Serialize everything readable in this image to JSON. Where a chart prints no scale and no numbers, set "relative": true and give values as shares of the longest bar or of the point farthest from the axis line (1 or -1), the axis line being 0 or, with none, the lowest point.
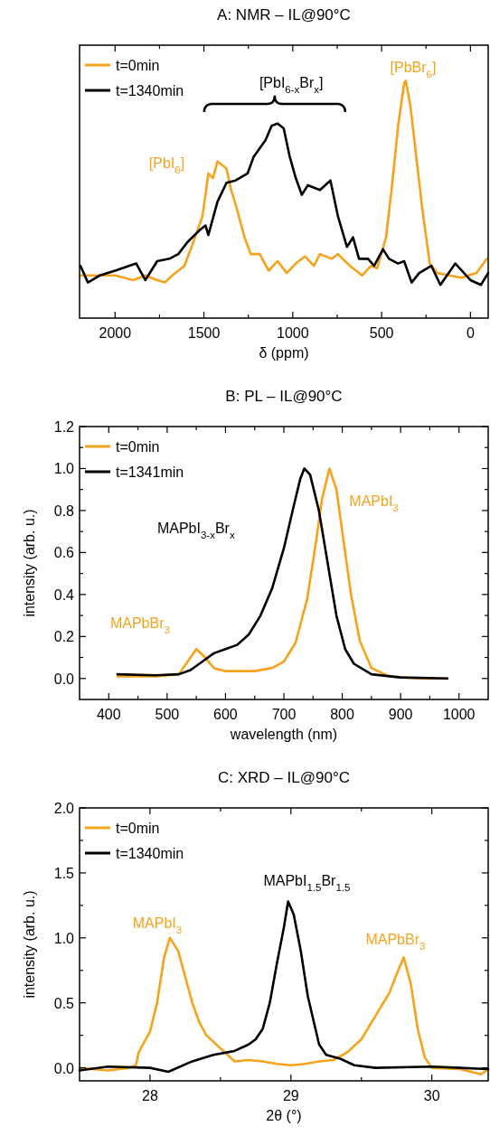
{
  "chart_data": [
    {
      "type": "line",
      "title": "A: NMR – IL@90°C",
      "xlabel": "δ (ppm)",
      "relative": true,
      "legend": "top left",
      "xlim": [
        2200,
        -100
      ],
      "xticks": [
        2000,
        {
          "value": 1750,
          "label": null
        },
        1500,
        {
          "value": 1250,
          "label": null
        },
        1000,
        {
          "value": 750,
          "label": null
        },
        500,
        {
          "value": 250,
          "label": null
        },
        0
      ],
      "series": [
        {
          "name": "t=0min",
          "color": "#f7a21b",
          "x": [
            2195,
            2085,
            2000,
            1898,
            1830,
            1763,
            1720,
            1678,
            1610,
            1560,
            1508,
            1475,
            1449,
            1424,
            1373,
            1347,
            1322,
            1271,
            1237,
            1186,
            1136,
            1085,
            1034,
            983,
            932,
            881,
            847,
            780,
            746,
            678,
            610,
            559,
            525,
            475,
            441,
            407,
            373,
            364,
            339,
            305,
            271,
            229,
            186,
            119,
            51,
            -34,
            -93
          ],
          "values": [
            0.18,
            0.18,
            0.18,
            0.16,
            0.18,
            0.16,
            0.15,
            0.18,
            0.22,
            0.32,
            0.43,
            0.61,
            0.59,
            0.66,
            0.63,
            0.54,
            0.48,
            0.34,
            0.27,
            0.27,
            0.2,
            0.24,
            0.19,
            0.23,
            0.26,
            0.22,
            0.27,
            0.25,
            0.27,
            0.22,
            0.18,
            0.22,
            0.21,
            0.34,
            0.56,
            0.81,
            0.99,
            1,
            0.9,
            0.68,
            0.46,
            0.23,
            0.19,
            0.18,
            0.17,
            0.19,
            0.25
          ]
        },
        {
          "name": "t=1340min",
          "color": "#000000",
          "x": [
            2195,
            2153,
            2085,
            2000,
            1881,
            1830,
            1763,
            1695,
            1644,
            1593,
            1525,
            1491,
            1475,
            1424,
            1373,
            1322,
            1254,
            1220,
            1153,
            1119,
            1085,
            1051,
            1017,
            983,
            949,
            915,
            847,
            788,
            746,
            695,
            661,
            627,
            576,
            542,
            492,
            458,
            407,
            373,
            331,
            288,
            220,
            169,
            85,
            0,
            -59,
            -100
          ],
          "values": [
            0.22,
            0.15,
            0.18,
            0.2,
            0.23,
            0.16,
            0.24,
            0.25,
            0.27,
            0.32,
            0.37,
            0.39,
            0.35,
            0.49,
            0.57,
            0.58,
            0.61,
            0.68,
            0.75,
            0.81,
            0.82,
            0.8,
            0.68,
            0.59,
            0.52,
            0.56,
            0.54,
            0.58,
            0.43,
            0.3,
            0.34,
            0.25,
            0.25,
            0.22,
            0.29,
            0.25,
            0.23,
            0.24,
            0.15,
            0.19,
            0.22,
            0.14,
            0.23,
            0.16,
            0.14,
            0.19
          ]
        }
      ],
      "annotations": [
        "[PbI$_{6}$]",
        "[PbBr$_{6}$]",
        "[PbI$_{6-x}$Br$_{x}$]"
      ]
    },
    {
      "type": "line",
      "title": "B: PL – IL@90°C",
      "xlabel": "wavelength (nm)",
      "ylabel": "intensity (arb. u.)",
      "legend": "top left",
      "xlim": [
        350,
        1050
      ],
      "ylim": [
        -0.1,
        1.2
      ],
      "xticks": [
        400,
        {
          "value": 450,
          "label": null
        },
        500,
        {
          "value": 550,
          "label": null
        },
        600,
        {
          "value": 650,
          "label": null
        },
        700,
        {
          "value": 750,
          "label": null
        },
        800,
        {
          "value": 850,
          "label": null
        },
        900,
        {
          "value": 950,
          "label": null
        },
        1000
      ],
      "yticks": [
        {
          "value": 0,
          "label": "0.0"
        },
        {
          "value": 0.1,
          "label": null
        },
        0.2,
        {
          "value": 0.3,
          "label": null
        },
        0.4,
        {
          "value": 0.5,
          "label": null
        },
        0.6,
        {
          "value": 0.7,
          "label": null
        },
        0.8,
        {
          "value": 0.9,
          "label": null
        },
        {
          "value": 1,
          "label": "1.0"
        },
        {
          "value": 1.1,
          "label": null
        },
        1.2
      ],
      "series": [
        {
          "name": "t=0min",
          "color": "#f7a21b",
          "x": [
            415,
            480,
            520,
            535,
            550,
            565,
            580,
            600,
            650,
            680,
            700,
            720,
            740,
            755,
            765,
            778,
            790,
            800,
            815,
            830,
            850,
            880,
            930,
            980
          ],
          "values": [
            0.01,
            0.01,
            0.02,
            0.08,
            0.14,
            0.1,
            0.05,
            0.035,
            0.035,
            0.05,
            0.08,
            0.17,
            0.38,
            0.65,
            0.85,
            1,
            0.9,
            0.7,
            0.4,
            0.18,
            0.05,
            0.01,
            0,
            0
          ]
        },
        {
          "name": "t=1341min",
          "color": "#000000",
          "x": [
            415,
            480,
            520,
            540,
            560,
            580,
            600,
            620,
            640,
            660,
            680,
            700,
            715,
            728,
            735,
            745,
            760,
            775,
            790,
            805,
            820,
            850,
            900,
            980
          ],
          "values": [
            0.02,
            0.015,
            0.02,
            0.04,
            0.08,
            0.12,
            0.14,
            0.16,
            0.21,
            0.3,
            0.43,
            0.62,
            0.8,
            0.95,
            1,
            0.97,
            0.8,
            0.55,
            0.3,
            0.14,
            0.07,
            0.02,
            0.005,
            0
          ]
        }
      ],
      "annotations": [
        "MAPbI$_{3}$",
        "MAPbI$_{3-x}$Br$_{x}$",
        "MAPbBr$_{3}$"
      ]
    },
    {
      "type": "line",
      "title": "C: XRD – IL@90°C",
      "xlabel": "2θ (°)",
      "ylabel": "intensity (arb. u.)",
      "legend": "top left",
      "xlim": [
        27.5,
        30.4
      ],
      "ylim": [
        -0.1,
        2.0
      ],
      "xticks": [
        28,
        {
          "value": 28.5,
          "label": null
        },
        29,
        {
          "value": 29.5,
          "label": null
        },
        30
      ],
      "yticks": [
        {
          "value": 0,
          "label": "0.0"
        },
        {
          "value": 0.25,
          "label": null
        },
        0.5,
        {
          "value": 0.75,
          "label": null
        },
        {
          "value": 1,
          "label": "1.0"
        },
        {
          "value": 1.25,
          "label": null
        },
        1.5,
        {
          "value": 1.75,
          "label": null
        },
        {
          "value": 2,
          "label": "2.0"
        }
      ],
      "series": [
        {
          "name": "t=0min",
          "color": "#f7a21b",
          "x": [
            27.5,
            27.7,
            27.85,
            27.9,
            27.92,
            28.0,
            28.05,
            28.1,
            28.14,
            28.2,
            28.25,
            28.3,
            28.35,
            28.4,
            28.5,
            28.6,
            28.7,
            28.8,
            28.9,
            29.0,
            29.1,
            29.2,
            29.3,
            29.4,
            29.5,
            29.6,
            29.7,
            29.75,
            29.8,
            29.85,
            29.9,
            29.95,
            30.0,
            30.2,
            30.35,
            30.4
          ],
          "values": [
            0,
            -0.02,
            0,
            0.02,
            0.12,
            0.28,
            0.5,
            0.85,
            1,
            0.9,
            0.7,
            0.5,
            0.35,
            0.25,
            0.15,
            0.05,
            0.06,
            0.05,
            0.03,
            0.02,
            0.03,
            0.05,
            0.06,
            0.12,
            0.22,
            0.4,
            0.58,
            0.72,
            0.85,
            0.65,
            0.3,
            0.08,
            0,
            -0.01,
            -0.05,
            -0.01
          ]
        },
        {
          "name": "t=1340min",
          "color": "#000000",
          "x": [
            27.5,
            27.7,
            28.0,
            28.13,
            28.3,
            28.45,
            28.6,
            28.7,
            28.75,
            28.8,
            28.85,
            28.9,
            28.95,
            28.98,
            29.02,
            29.07,
            29.12,
            29.2,
            29.25,
            29.35,
            29.45,
            29.6,
            30.0,
            30.4
          ],
          "values": [
            -0.02,
            0.01,
            0,
            -0.03,
            0.05,
            0.1,
            0.13,
            0.18,
            0.22,
            0.3,
            0.5,
            0.8,
            1.08,
            1.28,
            1.18,
            0.9,
            0.55,
            0.18,
            0.1,
            0.07,
            0.02,
            0,
            0.01,
            -0.01
          ]
        }
      ],
      "annotations": [
        "MAPbI$_{3}$",
        "MAPbI$_{1.5}$Br$_{1.5}$",
        "MAPbBr$_{3}$"
      ]
    }
  ]
}
